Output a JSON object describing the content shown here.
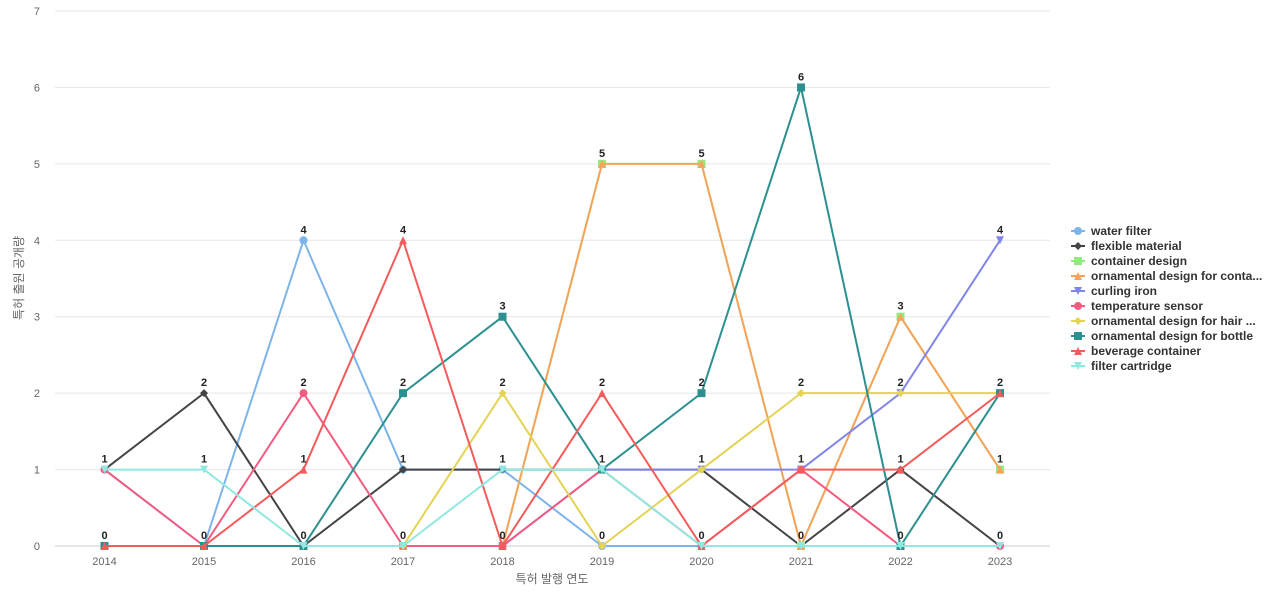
{
  "chart_data": {
    "type": "line",
    "title": "",
    "xlabel": "특허 발행 연도",
    "ylabel": "특허 출원 공개량",
    "x": [
      "2014",
      "2015",
      "2016",
      "2017",
      "2018",
      "2019",
      "2020",
      "2021",
      "2022",
      "2023"
    ],
    "ylim": [
      0,
      7
    ],
    "yticks": [
      0,
      1,
      2,
      3,
      4,
      5,
      6,
      7
    ],
    "grid": true,
    "legend_position": "right",
    "series": [
      {
        "name": "water filter",
        "color": "#7cb5ec",
        "marker": "circle",
        "values": [
          1,
          0,
          4,
          1,
          1,
          0,
          0,
          0,
          0,
          0
        ]
      },
      {
        "name": "flexible material",
        "color": "#434348",
        "marker": "diamond",
        "values": [
          1,
          2,
          0,
          1,
          1,
          1,
          1,
          0,
          1,
          0
        ]
      },
      {
        "name": "container design",
        "color": "#90ed7d",
        "marker": "square",
        "values": [
          0,
          0,
          0,
          0,
          0,
          5,
          5,
          0,
          3,
          1
        ]
      },
      {
        "name": "ornamental design for conta...",
        "color": "#f7a35c",
        "marker": "triangle",
        "values": [
          0,
          0,
          0,
          0,
          0,
          5,
          5,
          0,
          3,
          1
        ]
      },
      {
        "name": "curling iron",
        "color": "#8085e9",
        "marker": "triangle-down",
        "values": [
          0,
          0,
          0,
          0,
          0,
          1,
          1,
          1,
          2,
          4
        ]
      },
      {
        "name": "temperature sensor",
        "color": "#f15c80",
        "marker": "circle",
        "values": [
          1,
          0,
          2,
          0,
          0,
          1,
          0,
          1,
          0,
          0
        ]
      },
      {
        "name": "ornamental design for hair ...",
        "color": "#e4d354",
        "marker": "diamond",
        "values": [
          0,
          0,
          0,
          0,
          2,
          0,
          1,
          2,
          2,
          2
        ]
      },
      {
        "name": "ornamental design for bottle",
        "color": "#2b908f",
        "marker": "square",
        "values": [
          0,
          0,
          0,
          2,
          3,
          1,
          2,
          6,
          0,
          2
        ]
      },
      {
        "name": "beverage container",
        "color": "#f45b5b",
        "marker": "triangle",
        "values": [
          0,
          0,
          1,
          4,
          0,
          2,
          0,
          1,
          1,
          2
        ]
      },
      {
        "name": "filter cartridge",
        "color": "#91e8e1",
        "marker": "triangle-down",
        "values": [
          1,
          1,
          0,
          0,
          1,
          1,
          0,
          0,
          0,
          0
        ]
      }
    ],
    "data_labels": [
      {
        "x": "2014",
        "top": "1",
        "bottom": "0"
      },
      {
        "x": "2015",
        "top": "2",
        "mid": "1",
        "bottom": "0"
      },
      {
        "x": "2016",
        "top": "4",
        "mid2": "2",
        "mid": "1",
        "bottom": "0"
      },
      {
        "x": "2017",
        "top": "4",
        "mid2": "2",
        "mid": "1",
        "bottom": "0"
      },
      {
        "x": "2018",
        "top": "3",
        "mid2": "2",
        "mid": "1",
        "bottom": "0"
      },
      {
        "x": "2019",
        "top": "5",
        "mid2": "2",
        "mid": "1",
        "bottom": "0"
      },
      {
        "x": "2020",
        "top": "5",
        "mid2": "2",
        "mid": "1",
        "bottom": "0"
      },
      {
        "x": "2021",
        "top": "6",
        "mid2": "2",
        "mid": "1",
        "bottom": "0"
      },
      {
        "x": "2022",
        "top": "3",
        "mid2": "2",
        "mid": "1",
        "bottom": "0"
      },
      {
        "x": "2023",
        "top": "4",
        "mid2": "2",
        "mid": "1",
        "bottom": "0"
      }
    ]
  }
}
